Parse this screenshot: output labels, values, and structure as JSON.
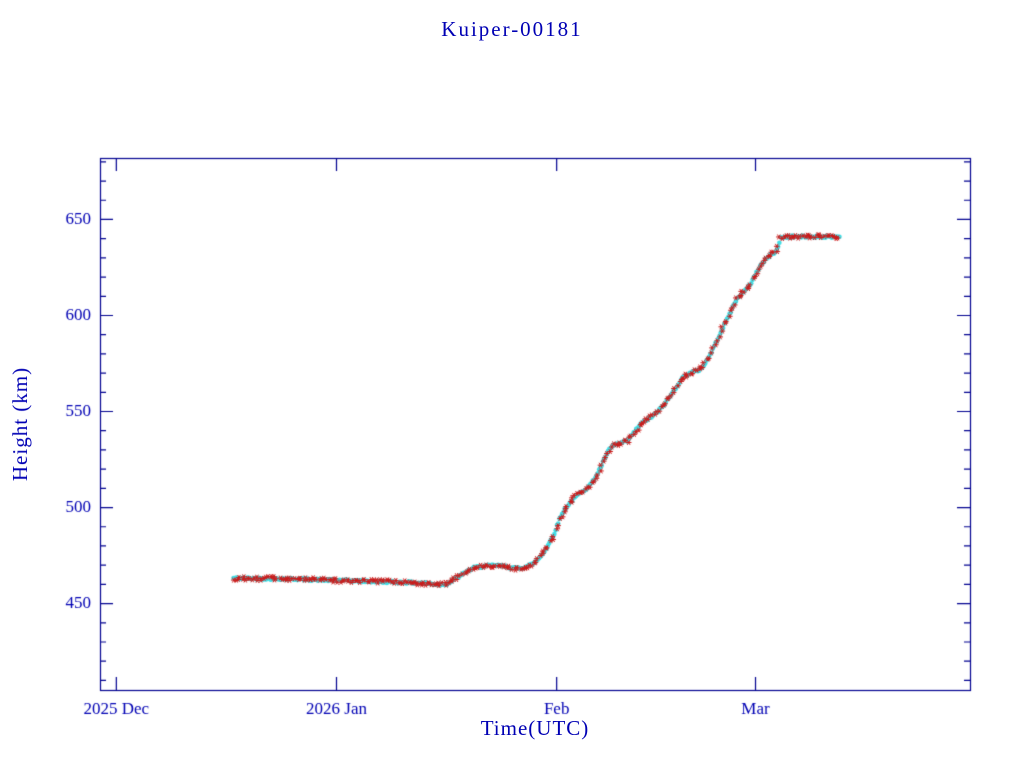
{
  "page": {
    "background": "#ffffff"
  },
  "chart_data": {
    "type": "scatter",
    "title": "Kuiper-00181",
    "xlabel": "Time(UTC)",
    "ylabel": "Height (km)",
    "grid": false,
    "legend": "none",
    "colors": {
      "text": "#0000b4",
      "frame": "#000090",
      "observed": "#cc1a1a",
      "smoothed": "#41dfe6"
    },
    "x_axis": {
      "unit": "days since 2025-12-01",
      "lim": [
        -2.3,
        120.2
      ],
      "major_ticks": [
        {
          "day": 0,
          "label": "2025 Dec"
        },
        {
          "day": 31,
          "label": "2026 Jan"
        },
        {
          "day": 62,
          "label": "Feb"
        },
        {
          "day": 90,
          "label": "Mar"
        }
      ]
    },
    "y_axis": {
      "lim": [
        405,
        682
      ],
      "major_ticks": [
        450,
        500,
        550,
        600,
        650
      ],
      "minor_step": 10
    },
    "series": [
      {
        "name": "smoothed-track",
        "marker": "dot",
        "color_key": "smoothed"
      },
      {
        "name": "observed-height",
        "marker": "asterisk",
        "color_key": "observed"
      }
    ],
    "track_anchors_day_height": [
      [
        16.5,
        463.2
      ],
      [
        19,
        463.1
      ],
      [
        22,
        463.0
      ],
      [
        25,
        462.8
      ],
      [
        28,
        462.4
      ],
      [
        31,
        462.1
      ],
      [
        34,
        461.8
      ],
      [
        37,
        461.4
      ],
      [
        40,
        461.1
      ],
      [
        43,
        460.7
      ],
      [
        45.5,
        459.9
      ],
      [
        46.6,
        460.3
      ],
      [
        48,
        463.5
      ],
      [
        49.5,
        467.0
      ],
      [
        50.5,
        468.8
      ],
      [
        52,
        469.6
      ],
      [
        53.5,
        469.9
      ],
      [
        55,
        469.2
      ],
      [
        56,
        468.3
      ],
      [
        57,
        468.6
      ],
      [
        58,
        469.6
      ],
      [
        58.8,
        471.0
      ],
      [
        59.6,
        474.0
      ],
      [
        60.6,
        479.0
      ],
      [
        61.6,
        486.0
      ],
      [
        62.3,
        493.0
      ],
      [
        63,
        498.5
      ],
      [
        64,
        503.0
      ],
      [
        64.8,
        506.0
      ],
      [
        65.6,
        508.5
      ],
      [
        66.4,
        510.5
      ],
      [
        67.2,
        514.0
      ],
      [
        68,
        519.5
      ],
      [
        68.7,
        525.0
      ],
      [
        69.3,
        529.5
      ],
      [
        70,
        532.5
      ],
      [
        71,
        533.5
      ],
      [
        71.9,
        534.5
      ],
      [
        72.8,
        538.5
      ],
      [
        73.7,
        543.0
      ],
      [
        74.6,
        545.5
      ],
      [
        75.5,
        547.5
      ],
      [
        76.4,
        550.5
      ],
      [
        77.2,
        554.0
      ],
      [
        78,
        558.0
      ],
      [
        78.8,
        562.5
      ],
      [
        79.5,
        566.5
      ],
      [
        80.2,
        569.0
      ],
      [
        81,
        570.3
      ],
      [
        81.9,
        571.2
      ],
      [
        82.6,
        573.5
      ],
      [
        83.4,
        578.0
      ],
      [
        84.2,
        584.0
      ],
      [
        85,
        590.5
      ],
      [
        85.8,
        596.5
      ],
      [
        86.5,
        602.0
      ],
      [
        87.2,
        607.5
      ],
      [
        87.9,
        611.0
      ],
      [
        88.6,
        613.0
      ],
      [
        89.3,
        616.5
      ],
      [
        90,
        621.5
      ],
      [
        90.7,
        626.0
      ],
      [
        91.4,
        629.0
      ],
      [
        92.1,
        631.5
      ],
      [
        92.7,
        633.0
      ],
      [
        93.1,
        634.2
      ],
      [
        93.5,
        640.3
      ],
      [
        94,
        640.8
      ],
      [
        95,
        641.0
      ],
      [
        97,
        641.0
      ],
      [
        99,
        641.0
      ],
      [
        101.9,
        641.0
      ]
    ]
  }
}
